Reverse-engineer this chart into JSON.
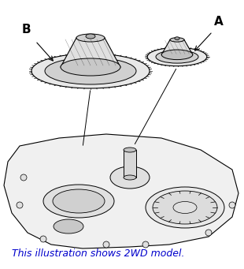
{
  "background_color": "#ffffff",
  "caption_text": "This illustration shows 2WD model.",
  "caption_color": "#0000cc",
  "caption_fontsize": 9,
  "label_A": "A",
  "label_B": "B",
  "label_fontsize": 11,
  "label_color": "#000000",
  "line_color": "#000000",
  "gear_color": "#000000",
  "fig_width": 3.1,
  "fig_height": 3.41,
  "dpi": 100
}
